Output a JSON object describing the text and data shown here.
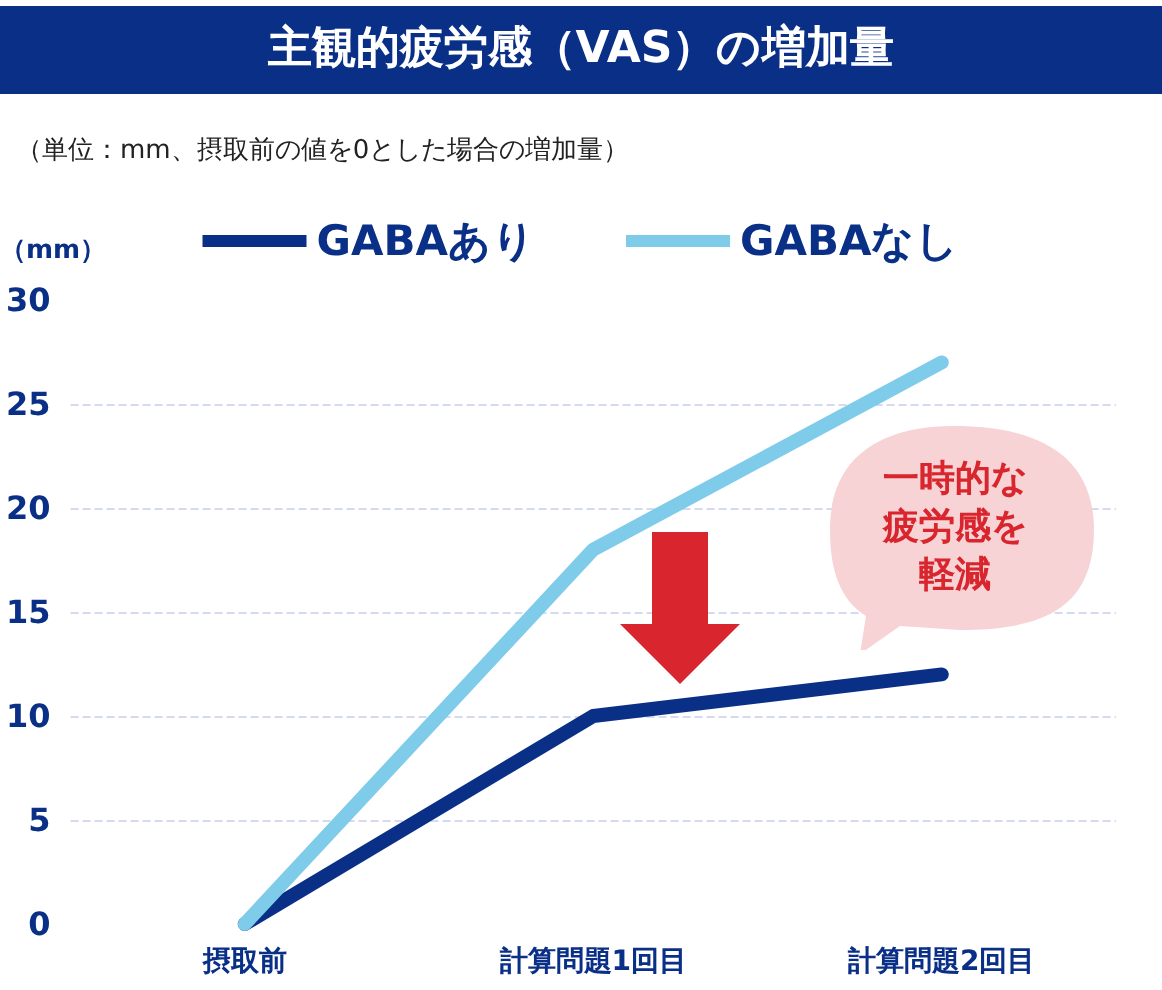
{
  "chart_data": {
    "type": "line",
    "title": "主観的疲労感（VAS）の増加量",
    "subtitle": "（単位：mm、摂取前の値を0とした場合の増加量）",
    "ylabel": "（mm）",
    "categories": [
      "摂取前",
      "計算問題1回目",
      "計算問題2回目"
    ],
    "series": [
      {
        "name": "GABAあり",
        "color": "#0a2f87",
        "values": [
          0,
          10,
          12
        ]
      },
      {
        "name": "GABAなし",
        "color": "#7ecbea",
        "values": [
          0,
          18,
          27
        ]
      }
    ],
    "ylim": [
      0,
      30
    ],
    "yticks": [
      0,
      5,
      10,
      15,
      20,
      25,
      30
    ],
    "grid": "y",
    "legend": "top",
    "marker": "none",
    "line_style": "solid",
    "annotations": [
      "一時的な疲労感を軽減"
    ]
  }
}
